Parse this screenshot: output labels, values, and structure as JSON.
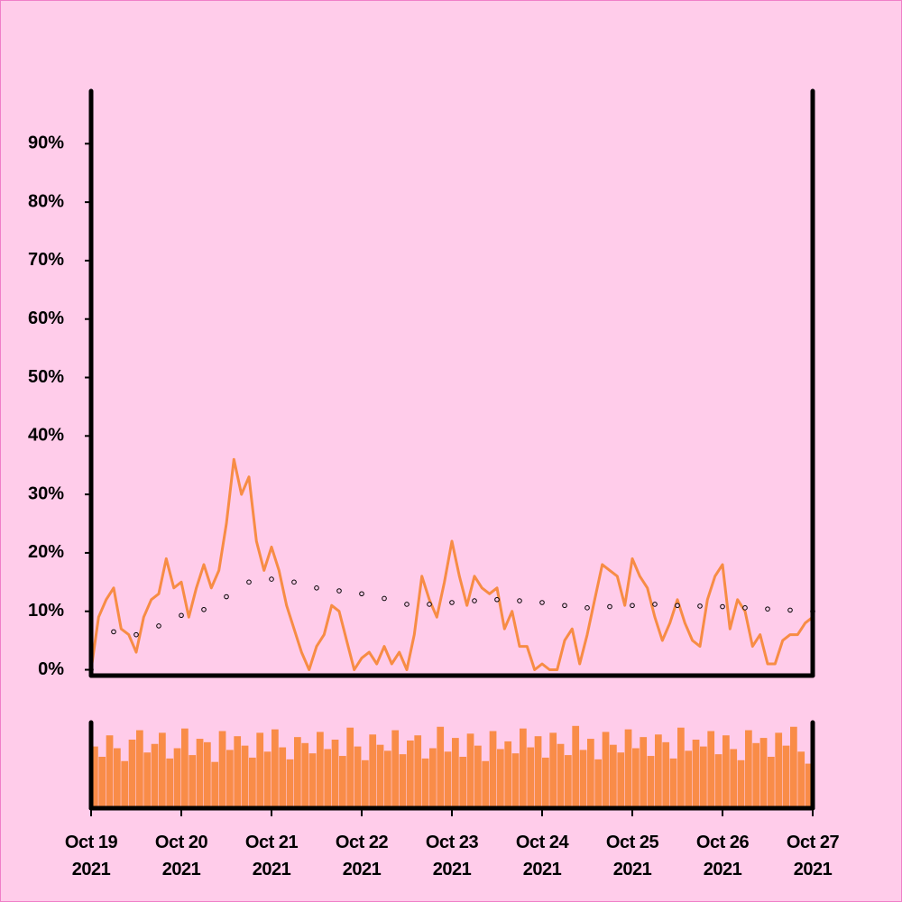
{
  "chart_data": [
    {
      "type": "line",
      "xlim": [
        "2021-10-19",
        "2021-10-27"
      ],
      "ylim": [
        -1,
        99
      ],
      "yticks": [
        {
          "value": 0,
          "label": "0%"
        },
        {
          "value": 10,
          "label": "10%"
        },
        {
          "value": 20,
          "label": "20%"
        },
        {
          "value": 30,
          "label": "30%"
        },
        {
          "value": 40,
          "label": "40%"
        },
        {
          "value": 50,
          "label": "50%"
        },
        {
          "value": 60,
          "label": "60%"
        },
        {
          "value": 70,
          "label": "70%"
        },
        {
          "value": 80,
          "label": "80%"
        },
        {
          "value": 90,
          "label": "90%"
        }
      ],
      "series": [
        {
          "color": "#f78c45",
          "values": [
            0,
            9,
            12,
            14,
            7,
            6,
            3,
            9,
            12,
            13,
            19,
            14,
            15,
            9,
            14,
            18,
            14,
            17,
            25,
            36,
            30,
            33,
            22,
            17,
            21,
            17,
            11,
            7,
            3,
            0,
            4,
            6,
            11,
            10,
            5,
            0,
            2,
            3,
            1,
            4,
            1,
            3,
            0,
            6,
            16,
            12,
            9,
            15,
            22,
            16,
            11,
            16,
            14,
            13,
            14,
            7,
            10,
            4,
            4,
            0,
            1,
            0,
            0,
            5,
            7,
            1,
            6,
            12,
            18,
            17,
            16,
            11,
            19,
            16,
            14,
            9,
            5,
            8,
            12,
            8,
            5,
            4,
            12,
            16,
            18,
            7,
            12,
            10,
            4,
            6,
            1,
            1,
            5,
            6,
            6,
            8,
            9
          ]
        },
        {
          "color": "#000000",
          "values": [
            0,
            6.5,
            6,
            7.5,
            9.3,
            10.3,
            12.5,
            15,
            15.5,
            15,
            14,
            13.5,
            13,
            12.2,
            11.2,
            11.2,
            11.5,
            11.8,
            12,
            11.8,
            11.5,
            11,
            10.6,
            10.8,
            11,
            11.2,
            11,
            10.9,
            10.8,
            10.6,
            10.4,
            10.2,
            10
          ]
        }
      ]
    },
    {
      "type": "bar",
      "xlim": [
        "2021-10-19",
        "2021-10-27"
      ],
      "ylim": [
        0,
        100
      ],
      "color": "#f98c48",
      "values": [
        72,
        60,
        85,
        70,
        55,
        80,
        91,
        65,
        75,
        88,
        58,
        70,
        93,
        62,
        81,
        77,
        54,
        90,
        68,
        84,
        73,
        59,
        88,
        66,
        92,
        71,
        57,
        83,
        76,
        64,
        89,
        69,
        80,
        61,
        94,
        72,
        56,
        86,
        74,
        67,
        91,
        63,
        79,
        85,
        58,
        70,
        95,
        66,
        82,
        60,
        87,
        73,
        55,
        90,
        69,
        78,
        64,
        93,
        71,
        84,
        59,
        88,
        75,
        62,
        96,
        68,
        81,
        57,
        89,
        74,
        65,
        92,
        70,
        83,
        61,
        86,
        77,
        58,
        94,
        67,
        80,
        72,
        90,
        63,
        85,
        69,
        56,
        91,
        76,
        82,
        60,
        88,
        73,
        95,
        66,
        52
      ],
      "xticks": [
        {
          "value": "2021-10-19",
          "label": "Oct 19\n2021"
        },
        {
          "value": "2021-10-20",
          "label": "Oct 20\n2021"
        },
        {
          "value": "2021-10-21",
          "label": "Oct 21\n2021"
        },
        {
          "value": "2021-10-22",
          "label": "Oct 22\n2021"
        },
        {
          "value": "2021-10-23",
          "label": "Oct 23\n2021"
        },
        {
          "value": "2021-10-24",
          "label": "Oct 24\n2021"
        },
        {
          "value": "2021-10-25",
          "label": "Oct 25\n2021"
        },
        {
          "value": "2021-10-26",
          "label": "Oct 26\n2021"
        },
        {
          "value": "2021-10-27",
          "label": "Oct 27\n2021"
        }
      ]
    }
  ]
}
